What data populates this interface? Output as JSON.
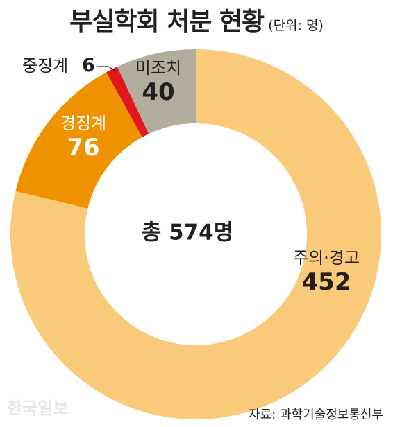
{
  "chart_data": {
    "type": "pie",
    "title": "부실학회 처분 현황",
    "unit_label": "(단위: 명)",
    "center_label": "총 574명",
    "slices": [
      {
        "label": "주의·경고",
        "value": 452,
        "color": "#F8CA79"
      },
      {
        "label": "경징계",
        "value": 76,
        "color": "#EF9200"
      },
      {
        "label": "중징계",
        "value": 6,
        "color": "#E3171E"
      },
      {
        "label": "미조치",
        "value": 40,
        "color": "#B3AD9D"
      }
    ]
  },
  "source": "자료: 과학기술정보통신부",
  "watermark": "한국일보"
}
